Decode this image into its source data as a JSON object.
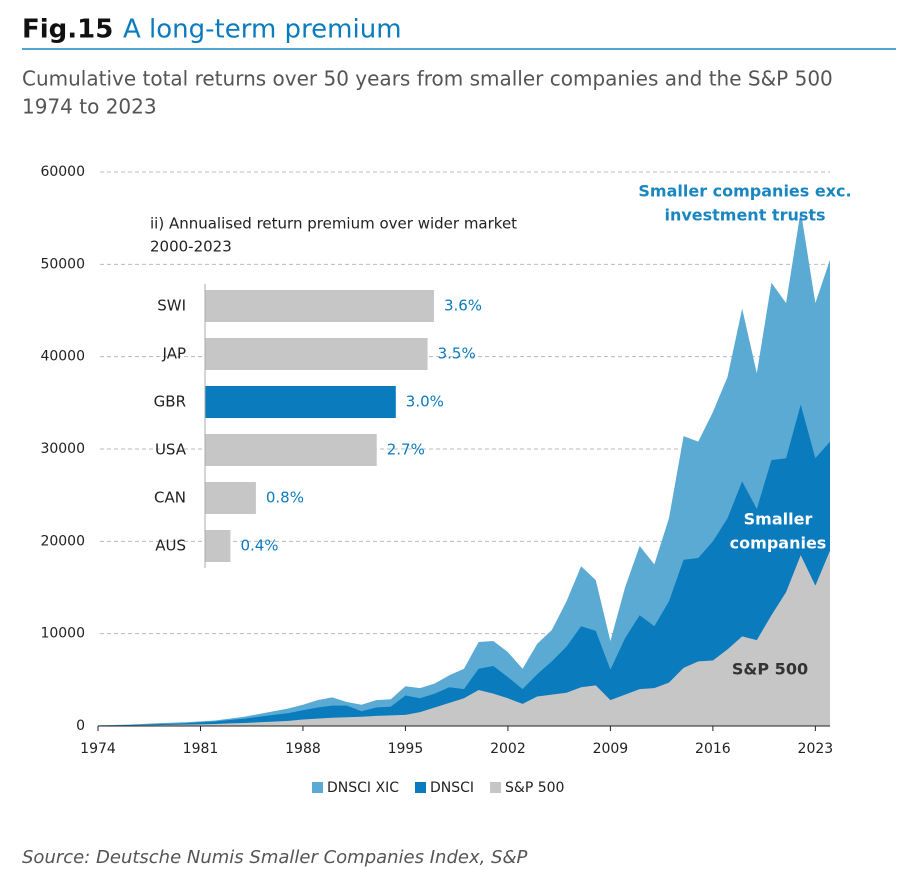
{
  "header": {
    "fig": "Fig.15",
    "title": "A long-term premium",
    "subtitle": [
      "Cumulative total returns over 50 years from smaller companies and the S&P 500",
      "1974 to 2023"
    ]
  },
  "chart_data": [
    {
      "type": "area",
      "x": [
        1974,
        1975,
        1976,
        1977,
        1978,
        1979,
        1980,
        1981,
        1982,
        1983,
        1984,
        1985,
        1986,
        1987,
        1988,
        1989,
        1990,
        1991,
        1992,
        1993,
        1994,
        1995,
        1996,
        1997,
        1998,
        1999,
        2000,
        2001,
        2002,
        2003,
        2004,
        2005,
        2006,
        2007,
        2008,
        2009,
        2010,
        2011,
        2012,
        2013,
        2014,
        2015,
        2016,
        2017,
        2018,
        2019,
        2020,
        2021,
        2022,
        2023,
        2024
      ],
      "series": [
        {
          "name": "DNSCI XIC",
          "color": "#5aaad3",
          "values": [
            80,
            110,
            150,
            220,
            300,
            350,
            400,
            500,
            600,
            800,
            1000,
            1300,
            1600,
            1900,
            2300,
            2800,
            3100,
            2600,
            2300,
            2800,
            2900,
            4300,
            4100,
            4600,
            5500,
            6200,
            9100,
            9200,
            8000,
            6200,
            8900,
            10400,
            13500,
            17300,
            15800,
            9200,
            15000,
            19500,
            17500,
            22500,
            31400,
            30800,
            34000,
            37800,
            45200,
            38200,
            48000,
            45800,
            55800,
            45800,
            50500
          ]
        },
        {
          "name": "DNSCI",
          "color": "#0a7bbd",
          "values": [
            50,
            70,
            100,
            150,
            200,
            250,
            300,
            400,
            500,
            650,
            800,
            1000,
            1200,
            1400,
            1700,
            2000,
            2200,
            2200,
            1600,
            2000,
            2100,
            3300,
            3000,
            3500,
            4200,
            4000,
            6200,
            6500,
            5300,
            4000,
            5600,
            7000,
            8600,
            10800,
            10300,
            6100,
            9500,
            12000,
            10800,
            13500,
            18000,
            18200,
            20000,
            22500,
            26500,
            23500,
            28800,
            29000,
            34800,
            29000,
            30800
          ]
        },
        {
          "name": "S&P 500",
          "color": "#c6c6c6",
          "values": [
            40,
            50,
            60,
            80,
            100,
            120,
            150,
            180,
            220,
            280,
            330,
            400,
            480,
            560,
            700,
            800,
            900,
            950,
            1000,
            1100,
            1150,
            1200,
            1500,
            2000,
            2500,
            3000,
            3900,
            3500,
            3000,
            2400,
            3200,
            3400,
            3600,
            4200,
            4400,
            2800,
            3400,
            4000,
            4100,
            4700,
            6300,
            7000,
            7100,
            8300,
            9700,
            9300,
            12000,
            14500,
            18500,
            15200,
            19000
          ]
        }
      ],
      "xlim": [
        1974,
        2024
      ],
      "xticks": [
        1974,
        1981,
        1988,
        1995,
        2002,
        2009,
        2016,
        2023
      ],
      "ylim": [
        0,
        60000
      ],
      "yticks": [
        0,
        10000,
        20000,
        30000,
        40000,
        50000,
        60000
      ],
      "grid": true,
      "annotations": [
        {
          "lines": [
            "Smaller companies exc.",
            "investment trusts"
          ],
          "color": "#1a86c0"
        },
        {
          "lines": [
            "Smaller",
            "companies"
          ],
          "color": "#ffffff"
        },
        {
          "lines": [
            "S&P 500"
          ],
          "color": "#333333"
        }
      ]
    },
    {
      "type": "hbar",
      "title": "ii) Annualised return premium over wider market",
      "subtitle": "2000-2023",
      "categories": [
        "SWI",
        "JAP",
        "GBR",
        "USA",
        "CAN",
        "AUS"
      ],
      "values": [
        3.6,
        3.5,
        3.0,
        2.7,
        0.8,
        0.4
      ],
      "value_labels": [
        "3.6%",
        "3.5%",
        "3.0%",
        "2.7%",
        "0.8%",
        "0.4%"
      ],
      "colors": [
        "#c6c6c6",
        "#c6c6c6",
        "#0a7bbd",
        "#c6c6c6",
        "#c6c6c6",
        "#c6c6c6"
      ]
    }
  ],
  "source": "Source: Deutsche Numis Smaller Companies Index, S&P"
}
